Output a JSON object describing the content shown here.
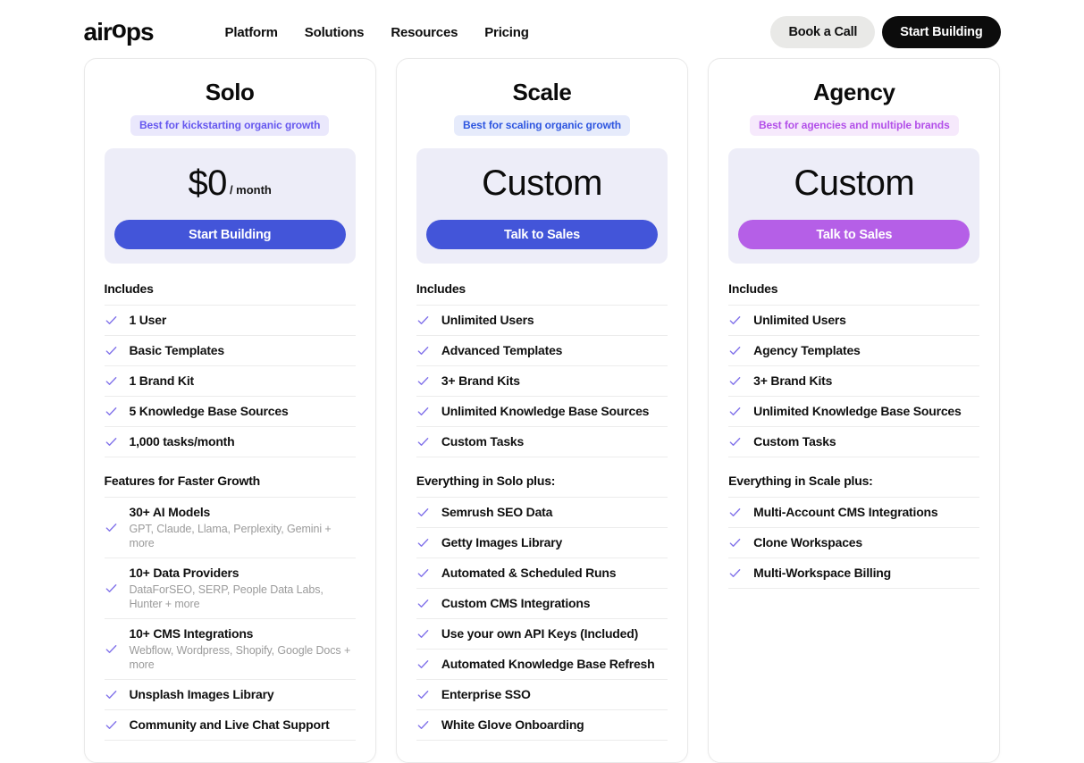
{
  "header": {
    "logo": "airops",
    "nav": [
      {
        "label": "Platform"
      },
      {
        "label": "Solutions"
      },
      {
        "label": "Resources"
      },
      {
        "label": "Pricing"
      }
    ],
    "actions": {
      "book_call": "Book a Call",
      "start_building": "Start Building"
    }
  },
  "palette": {
    "primary_blue": "#4355d9",
    "agency_purple": "#b55fe7",
    "check_color": "#8172ea",
    "divider": "#ececec",
    "card_border": "#e9e9e9",
    "price_box_bg": "#ededf8",
    "book_call_bg": "#e9e9e7",
    "start_building_bg": "#0c0c0c"
  },
  "plans": [
    {
      "name": "Solo",
      "tagline": "Best for kickstarting organic growth",
      "tagline_color": "#6658ef",
      "tagline_bg": "#eae8fc",
      "price": "$0",
      "price_suffix": "/ month",
      "cta": "Start Building",
      "cta_bg": "#4355d9",
      "sections": [
        {
          "heading": "Includes",
          "items": [
            {
              "label": "1 User"
            },
            {
              "label": "Basic Templates"
            },
            {
              "label": "1 Brand Kit"
            },
            {
              "label": "5 Knowledge Base Sources"
            },
            {
              "label": "1,000 tasks/month"
            }
          ]
        },
        {
          "heading": "Features for Faster Growth",
          "items": [
            {
              "label": "30+ AI Models",
              "sub": "GPT, Claude, Llama, Perplexity, Gemini + more"
            },
            {
              "label": "10+ Data Providers",
              "sub": "DataForSEO, SERP, People Data Labs, Hunter + more"
            },
            {
              "label": "10+ CMS Integrations",
              "sub": "Webflow, Wordpress, Shopify, Google Docs + more"
            },
            {
              "label": "Unsplash Images Library"
            },
            {
              "label": "Community and Live Chat Support"
            }
          ]
        }
      ]
    },
    {
      "name": "Scale",
      "tagline": "Best for scaling organic growth",
      "tagline_color": "#2e56e0",
      "tagline_bg": "#e6ebfb",
      "price": "Custom",
      "price_suffix": "",
      "cta": "Talk to Sales",
      "cta_bg": "#4355d9",
      "sections": [
        {
          "heading": "Includes",
          "items": [
            {
              "label": "Unlimited Users"
            },
            {
              "label": "Advanced Templates"
            },
            {
              "label": "3+ Brand Kits"
            },
            {
              "label": "Unlimited Knowledge Base Sources"
            },
            {
              "label": "Custom Tasks"
            }
          ]
        },
        {
          "heading": "Everything in Solo plus:",
          "items": [
            {
              "label": "Semrush SEO Data"
            },
            {
              "label": "Getty Images Library"
            },
            {
              "label": "Automated & Scheduled Runs"
            },
            {
              "label": "Custom CMS Integrations"
            },
            {
              "label": "Use your own API Keys (Included)"
            },
            {
              "label": "Automated Knowledge Base Refresh"
            },
            {
              "label": "Enterprise SSO"
            },
            {
              "label": "White Glove Onboarding"
            }
          ]
        }
      ]
    },
    {
      "name": "Agency",
      "tagline": "Best for agencies and multiple brands",
      "tagline_color": "#b350e9",
      "tagline_bg": "#f6e9fc",
      "price": "Custom",
      "price_suffix": "",
      "cta": "Talk to Sales",
      "cta_bg": "#b55fe7",
      "sections": [
        {
          "heading": "Includes",
          "items": [
            {
              "label": "Unlimited Users"
            },
            {
              "label": "Agency Templates"
            },
            {
              "label": "3+ Brand Kits"
            },
            {
              "label": "Unlimited Knowledge Base Sources"
            },
            {
              "label": "Custom Tasks"
            }
          ]
        },
        {
          "heading": "Everything in Scale plus:",
          "items": [
            {
              "label": "Multi-Account CMS Integrations"
            },
            {
              "label": "Clone Workspaces"
            },
            {
              "label": "Multi-Workspace Billing"
            }
          ]
        }
      ]
    }
  ]
}
